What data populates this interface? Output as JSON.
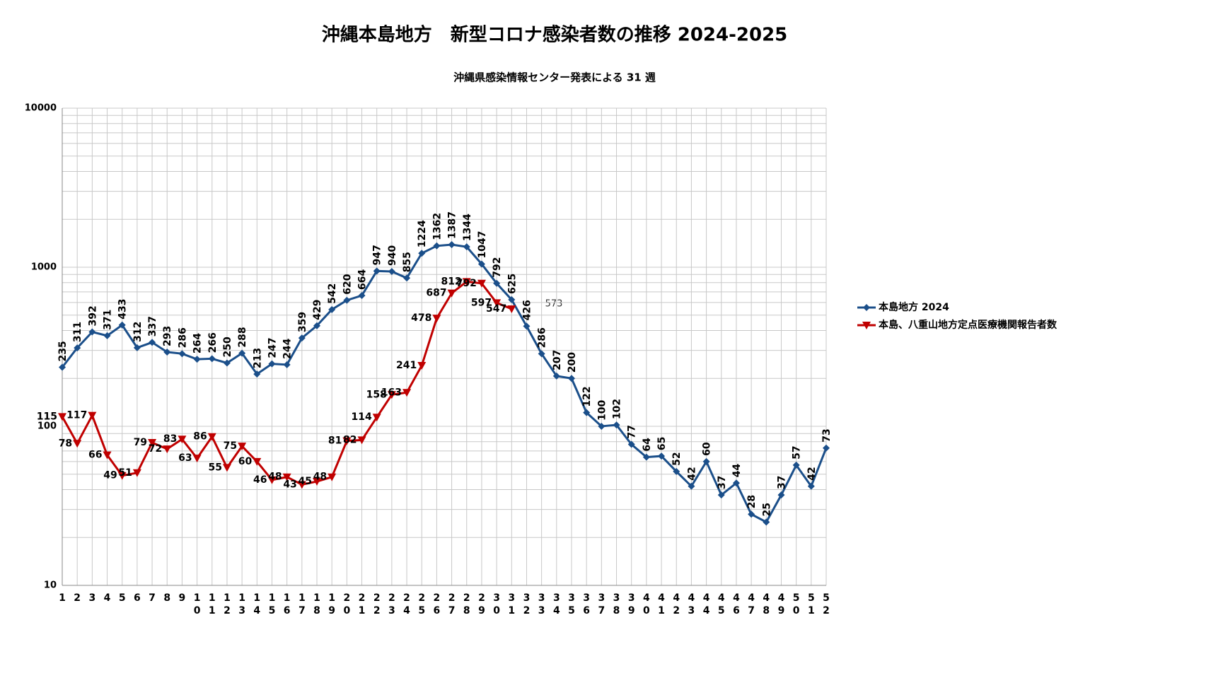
{
  "chart_data": {
    "type": "line",
    "title": "沖縄本島地方　新型コロナ感染者数の推移 2024-2025",
    "subtitle": "沖縄県感染情報センター発表による 31 週",
    "categories": [
      "1",
      "2",
      "3",
      "4",
      "5",
      "6",
      "7",
      "8",
      "9",
      "10",
      "11",
      "12",
      "13",
      "14",
      "15",
      "16",
      "17",
      "18",
      "19",
      "20",
      "21",
      "22",
      "23",
      "24",
      "25",
      "26",
      "27",
      "28",
      "29",
      "30",
      "31",
      "32",
      "33",
      "34",
      "35",
      "36",
      "37",
      "38",
      "39",
      "40",
      "41",
      "42",
      "43",
      "44",
      "45",
      "46",
      "47",
      "48",
      "49",
      "50",
      "51",
      "52"
    ],
    "series": [
      {
        "name": "本島地方 2024",
        "color": "#1b4f8a",
        "marker": "diamond",
        "values": [
          235,
          311,
          392,
          371,
          433,
          312,
          337,
          293,
          286,
          264,
          266,
          250,
          288,
          213,
          247,
          244,
          359,
          429,
          542,
          620,
          664,
          947,
          940,
          855,
          1224,
          1362,
          1387,
          1344,
          1047,
          792,
          625,
          426,
          286,
          207,
          200,
          122,
          100,
          102,
          77,
          64,
          65,
          52,
          42,
          60,
          37,
          44,
          28,
          25,
          37,
          57,
          42,
          73
        ]
      },
      {
        "name": "本島、八重山地方定点医療機関報告者数",
        "color": "#c00000",
        "marker": "triangle-down",
        "values": [
          115,
          78,
          117,
          66,
          49,
          51,
          79,
          72,
          83,
          63,
          86,
          55,
          75,
          60,
          46,
          48,
          43,
          45,
          48,
          81,
          82,
          114,
          158,
          163,
          241,
          478,
          687,
          812,
          792,
          597,
          547,
          null,
          null,
          null,
          null,
          null,
          null,
          null,
          null,
          null,
          null,
          null,
          null,
          null,
          null,
          null,
          null,
          null,
          null,
          null,
          null,
          null
        ]
      }
    ],
    "annotations": [
      "573"
    ],
    "ylim": [
      10,
      10000
    ],
    "yticks": [
      10,
      100,
      1000,
      10000
    ],
    "log_scale": true,
    "grid": true,
    "legend": "right"
  }
}
